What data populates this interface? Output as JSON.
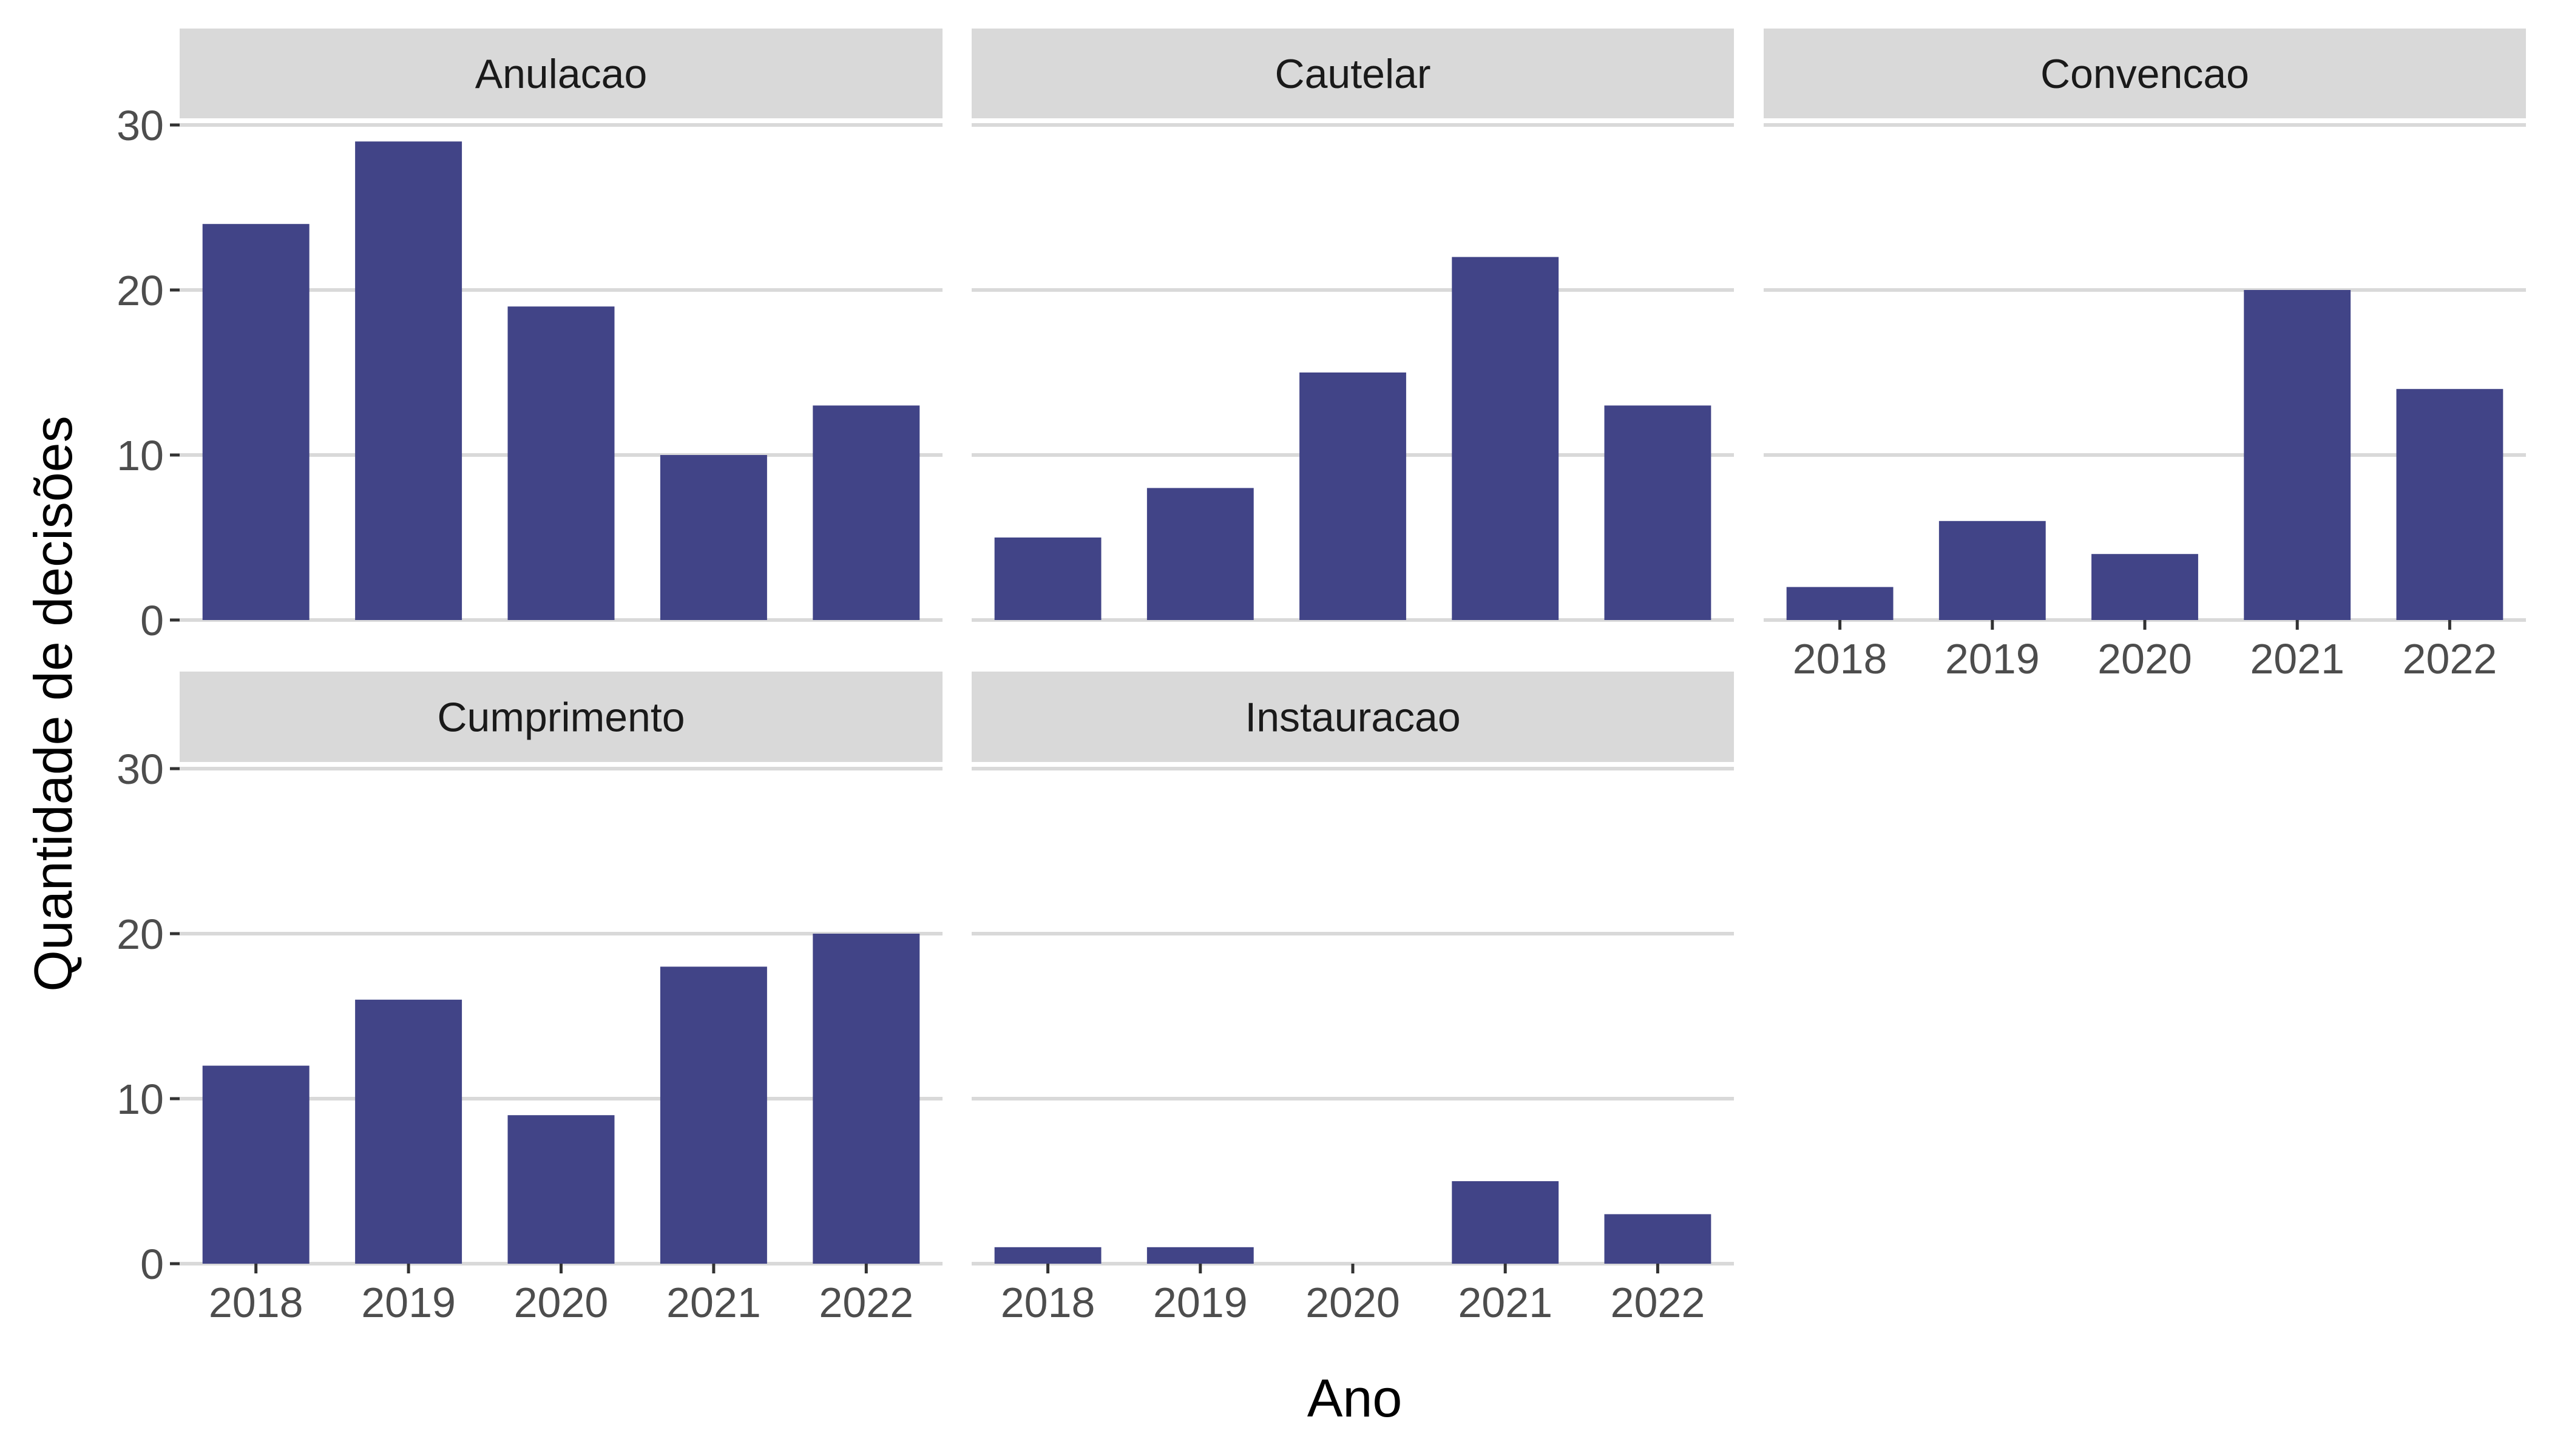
{
  "chart_data": {
    "type": "bar",
    "xlabel": "Ano",
    "ylabel": "Quantidade de decisões",
    "ylim": [
      0,
      35
    ],
    "yticks": [
      0,
      10,
      20,
      30
    ],
    "categories": [
      "2018",
      "2019",
      "2020",
      "2021",
      "2022"
    ],
    "colors": {
      "bar": "#414487",
      "strip": "#d9d9d9",
      "grid": "#d9d9d9"
    },
    "grid": true,
    "panels": [
      {
        "name": "Anulacao",
        "values": [
          24,
          29,
          19,
          10,
          13
        ]
      },
      {
        "name": "Cautelar",
        "values": [
          5,
          8,
          15,
          22,
          13
        ]
      },
      {
        "name": "Convencao",
        "values": [
          2,
          6,
          4,
          20,
          14
        ]
      },
      {
        "name": "Cumprimento",
        "values": [
          12,
          16,
          9,
          18,
          20
        ]
      },
      {
        "name": "Instauracao",
        "values": [
          1,
          1,
          0,
          5,
          3
        ]
      }
    ]
  }
}
